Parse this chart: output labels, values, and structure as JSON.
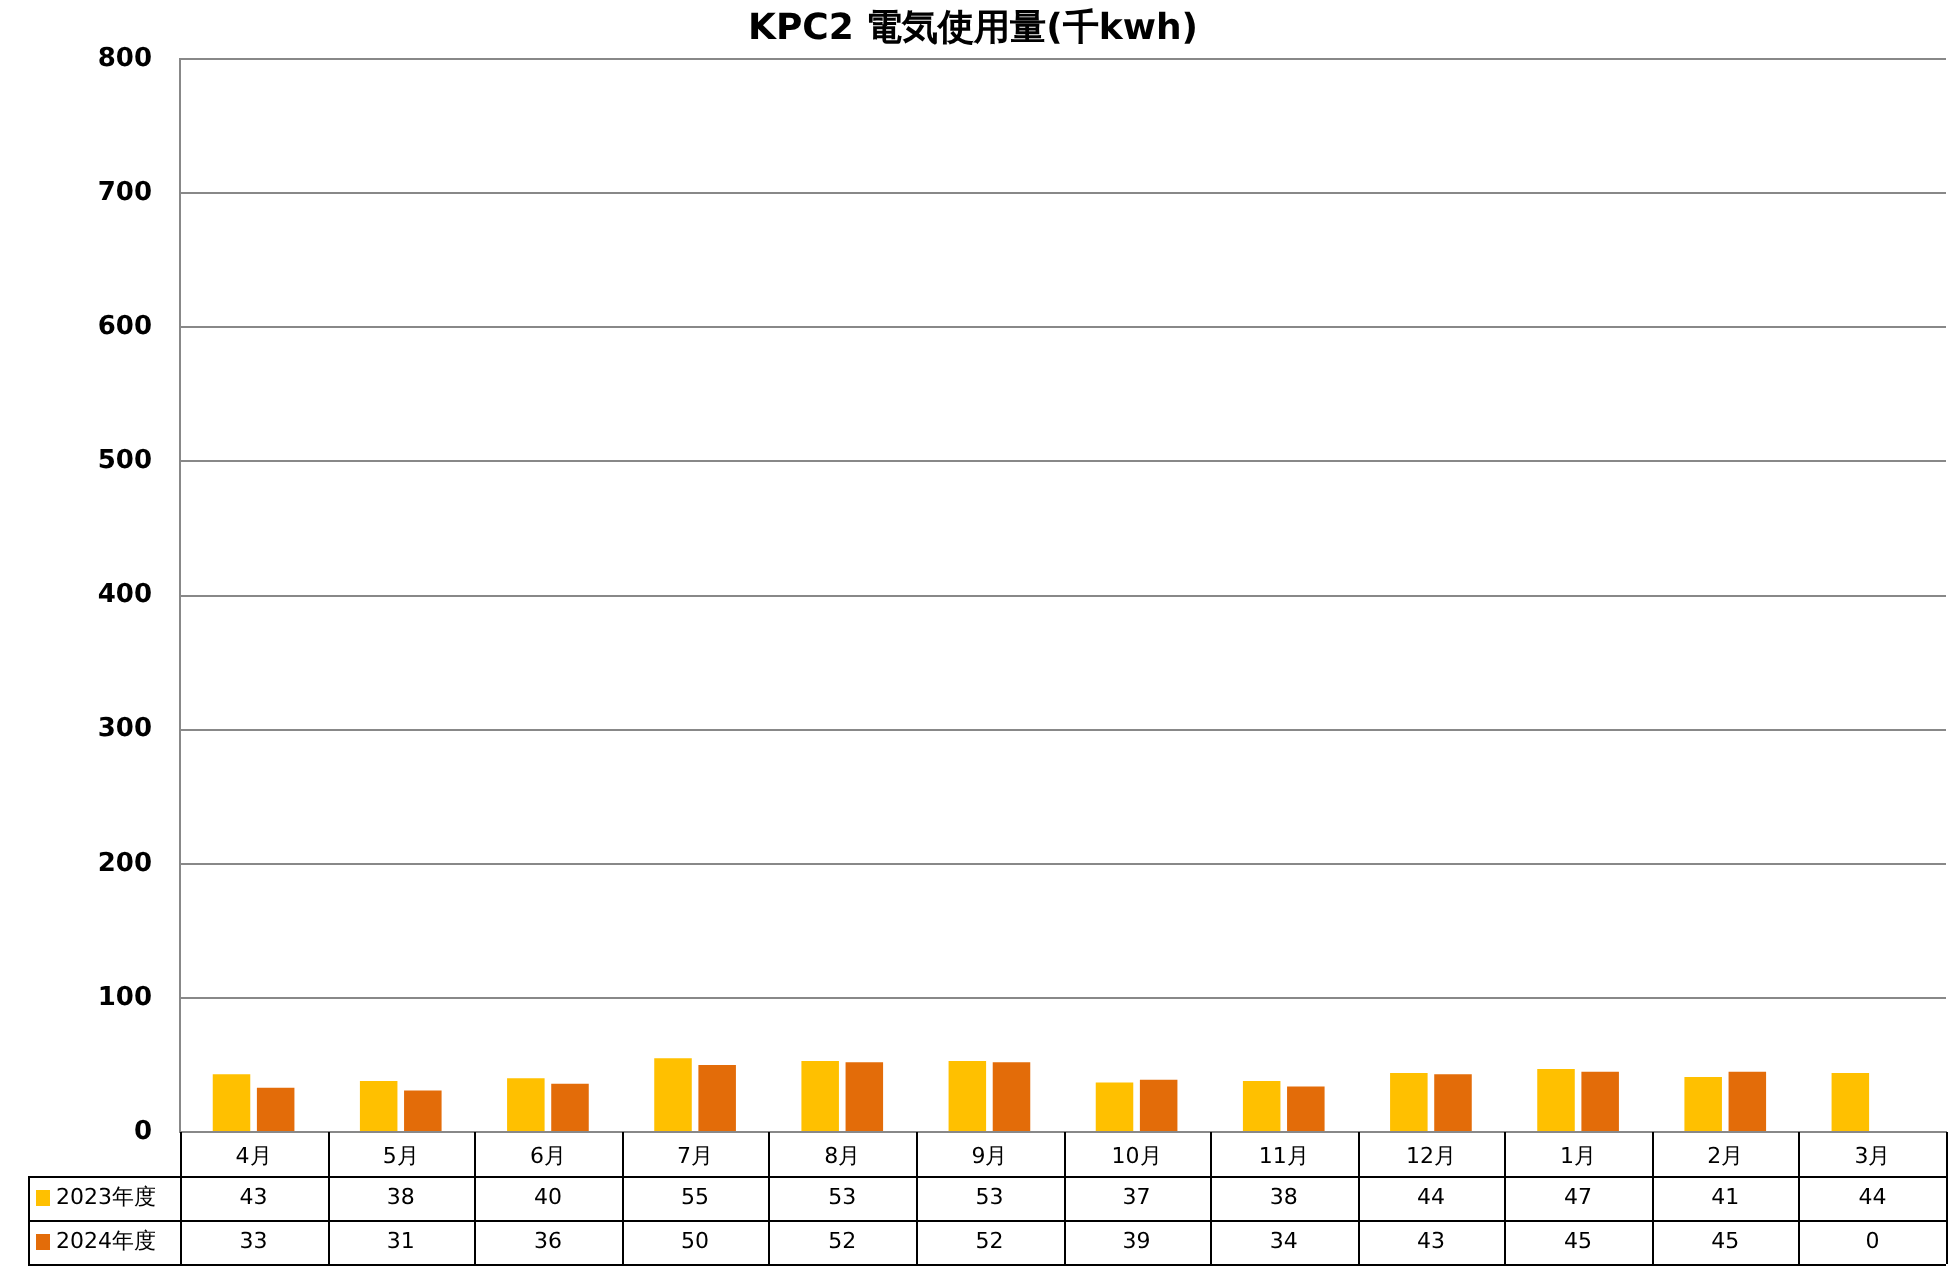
{
  "chart_data": {
    "type": "bar",
    "title": "KPC2 電気使用量(千kwh)",
    "categories": [
      "4月",
      "5月",
      "6月",
      "7月",
      "8月",
      "9月",
      "10月",
      "11月",
      "12月",
      "1月",
      "2月",
      "3月"
    ],
    "series": [
      {
        "name": "2023年度",
        "color": "#ffc000",
        "values": [
          43,
          38,
          40,
          55,
          53,
          53,
          37,
          38,
          44,
          47,
          41,
          44
        ]
      },
      {
        "name": "2024年度",
        "color": "#e36c09",
        "values": [
          33,
          31,
          36,
          50,
          52,
          52,
          39,
          34,
          43,
          45,
          45,
          0
        ]
      }
    ],
    "ylim": [
      0,
      800
    ],
    "yticks": [
      0,
      100,
      200,
      300,
      400,
      500,
      600,
      700,
      800
    ],
    "grid": "y",
    "legend": "bottom left",
    "data_labels": true
  }
}
